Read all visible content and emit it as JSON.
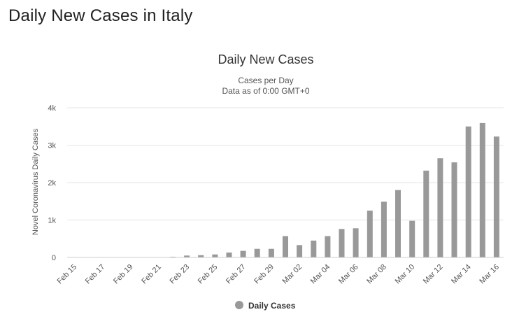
{
  "page": {
    "heading": "Daily New Cases in Italy"
  },
  "chart_data": {
    "type": "bar",
    "title": "Daily New Cases",
    "subtitle_lines": [
      "Cases per Day",
      "Data as of 0:00 GMT+0"
    ],
    "ylabel": "Novel Coronavirus Daily Cases",
    "xlabel": "",
    "ylim": [
      0,
      4000
    ],
    "y_ticks": [
      0,
      1000,
      2000,
      3000,
      4000
    ],
    "y_tick_labels": [
      "0",
      "1k",
      "2k",
      "3k",
      "4k"
    ],
    "categories": [
      "Feb 15",
      "Feb 16",
      "Feb 17",
      "Feb 18",
      "Feb 19",
      "Feb 20",
      "Feb 21",
      "Feb 22",
      "Feb 23",
      "Feb 24",
      "Feb 25",
      "Feb 26",
      "Feb 27",
      "Feb 28",
      "Feb 29",
      "Mar 01",
      "Mar 02",
      "Mar 03",
      "Mar 04",
      "Mar 05",
      "Mar 06",
      "Mar 07",
      "Mar 08",
      "Mar 09",
      "Mar 10",
      "Mar 11",
      "Mar 12",
      "Mar 13",
      "Mar 14",
      "Mar 15",
      "Mar 16"
    ],
    "x_tick_labels": [
      "Feb 15",
      "Feb 17",
      "Feb 19",
      "Feb 21",
      "Feb 23",
      "Feb 25",
      "Feb 27",
      "Feb 29",
      "Mar 02",
      "Mar 04",
      "Mar 06",
      "Mar 08",
      "Mar 10",
      "Mar 12",
      "Mar 14",
      "Mar 16"
    ],
    "series": [
      {
        "name": "Daily Cases",
        "color": "#999999",
        "values": [
          0,
          0,
          0,
          0,
          0,
          0,
          0,
          17,
          50,
          60,
          80,
          130,
          175,
          230,
          230,
          570,
          330,
          450,
          570,
          760,
          780,
          1250,
          1490,
          1800,
          980,
          2320,
          2650,
          2540,
          3500,
          3590,
          3230
        ]
      }
    ],
    "legend": {
      "position": "bottom-center",
      "label": "Daily Cases"
    },
    "grid": true
  }
}
